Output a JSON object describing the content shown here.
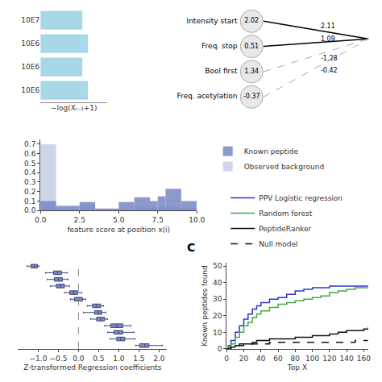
{
  "chart_data": [
    {
      "type": "bar",
      "orientation": "horizontal",
      "categories": [
        "10E7",
        "10E6",
        "10E6",
        "10E6"
      ],
      "values": [
        0.75,
        0.85,
        0.75,
        0.85
      ],
      "color": "#a8d8e8",
      "xlim": [
        0,
        1.2
      ],
      "xlabel": "−log(Xᵢ₋₁+1)",
      "tick_labels": "y",
      "grid": false
    },
    {
      "type": "histogram",
      "bins": [
        0,
        1,
        2.5,
        3.5,
        5,
        6,
        7,
        7.5,
        8,
        9,
        10
      ],
      "series": [
        {
          "name": "Known peptide",
          "color": "#7b88c2",
          "values": [
            0.1,
            0.05,
            0.09,
            0.02,
            0.09,
            0.14,
            0.1,
            0.15,
            0.23,
            0.1
          ]
        },
        {
          "name": "Observed background",
          "color": "#d0d4e8",
          "values": [
            0.7,
            0.02,
            0.06,
            0.02,
            0.02,
            0.04,
            0.03,
            0.04,
            0.04,
            0.03
          ]
        }
      ],
      "xlabel": "feature score at position x(i)",
      "xlim": [
        0,
        10
      ],
      "xticks": [
        {
          "value": 0,
          "label": "0.0"
        },
        2.5,
        {
          "value": 5.0,
          "label": "5.0"
        },
        7.5,
        {
          "value": 10.0,
          "label": "10.0"
        }
      ],
      "ylim": [
        0,
        0.75
      ],
      "yticks": [
        {
          "value": 0.0,
          "label": "0.0"
        },
        0.1,
        0.2,
        0.3,
        0.4,
        0.5,
        0.6,
        0.7
      ],
      "grid": false
    },
    {
      "type": "network",
      "nodes": [
        {
          "label": "Intensity start",
          "value": 2.02
        },
        {
          "label": "Freq. stop",
          "value": 0.51
        },
        {
          "label": "Bool first",
          "value": 1.34
        },
        {
          "label": "Freq. acetylation",
          "value": -0.37
        }
      ],
      "edges": [
        {
          "label": 2.11,
          "line_style": "solid"
        },
        {
          "label": 1.09,
          "line_style": "solid"
        },
        {
          "label": -1.28,
          "line_style": "dashed"
        },
        {
          "label": -0.42,
          "line_style": "dashed"
        }
      ]
    },
    {
      "type": "box",
      "orientation": "horizontal",
      "boxes": [
        {
          "q1": -1.18,
          "med": -1.1,
          "q3": -1.02,
          "whislo": -1.28,
          "whishi": -0.98
        },
        {
          "q1": -0.62,
          "med": -0.52,
          "q3": -0.42,
          "whislo": -0.82,
          "whishi": -0.28
        },
        {
          "q1": -0.6,
          "med": -0.5,
          "q3": -0.4,
          "whislo": -0.78,
          "whishi": -0.26
        },
        {
          "q1": -0.55,
          "med": -0.45,
          "q3": -0.35,
          "whislo": -0.7,
          "whishi": -0.22
        },
        {
          "q1": -0.22,
          "med": -0.12,
          "q3": -0.02,
          "whislo": -0.35,
          "whishi": 0.08
        },
        {
          "q1": -0.1,
          "med": 0.0,
          "q3": 0.1,
          "whislo": -0.2,
          "whishi": 0.18
        },
        {
          "q1": 0.35,
          "med": 0.45,
          "q3": 0.55,
          "whislo": 0.22,
          "whishi": 0.62
        },
        {
          "q1": 0.4,
          "med": 0.5,
          "q3": 0.58,
          "whislo": 0.12,
          "whishi": 0.68
        },
        {
          "q1": 0.45,
          "med": 0.55,
          "q3": 0.65,
          "whislo": 0.3,
          "whishi": 0.72
        },
        {
          "q1": 0.8,
          "med": 0.95,
          "q3": 1.1,
          "whislo": 0.65,
          "whishi": 1.3
        },
        {
          "q1": 0.88,
          "med": 1.0,
          "q3": 1.1,
          "whislo": 0.72,
          "whishi": 1.38
        },
        {
          "q1": 0.95,
          "med": 1.05,
          "q3": 1.15,
          "whislo": 0.78,
          "whishi": 1.4
        },
        {
          "q1": 1.52,
          "med": 1.65,
          "q3": 1.75,
          "whislo": 1.42,
          "whishi": 2.08
        }
      ],
      "color": "#7b88c2",
      "reference_line": {
        "x": 0,
        "line_style": "dashed"
      },
      "xlabel": "Z-transformed Regression coefficients",
      "xlim": [
        -1.5,
        2.2
      ],
      "xticks": [
        {
          "value": -1.0,
          "label": "−1.0"
        },
        {
          "value": -0.5,
          "label": "−0.5"
        },
        {
          "value": 0.0,
          "label": "0.0"
        },
        0.5,
        {
          "value": 1.0,
          "label": "1.0"
        },
        1.5,
        {
          "value": 2.0,
          "label": "2.0"
        }
      ],
      "tick_labels": "x",
      "grid": false
    },
    {
      "type": "line",
      "x": [
        0,
        2,
        5,
        10,
        15,
        20,
        25,
        30,
        35,
        40,
        50,
        60,
        70,
        80,
        90,
        100,
        110,
        120,
        130,
        140,
        150,
        160,
        165
      ],
      "series": [
        {
          "name": "PPV Logistic regression",
          "color": "#3333cc",
          "line_style": "solid",
          "values": [
            0,
            2,
            5,
            10,
            14,
            18,
            21,
            24,
            26,
            28,
            30,
            31,
            33,
            35,
            36,
            37,
            37,
            38,
            38,
            38,
            38,
            38,
            38
          ]
        },
        {
          "name": "Random forest",
          "color": "#44aa44",
          "line_style": "solid",
          "values": [
            0,
            1,
            3,
            7,
            10,
            14,
            16,
            19,
            21,
            23,
            25,
            27,
            28,
            29,
            30,
            31,
            32,
            34,
            35,
            36,
            37,
            37,
            38
          ]
        },
        {
          "name": "PeptideRanker",
          "color": "#111111",
          "line_style": "solid",
          "values": [
            0,
            0,
            1,
            2,
            3,
            3,
            3,
            4,
            5,
            5,
            6,
            6,
            6,
            7,
            7,
            8,
            8,
            9,
            10,
            11,
            11,
            12,
            13
          ]
        },
        {
          "name": "Null model",
          "color": "#111111",
          "line_style": "dashed",
          "values": [
            0,
            0,
            1,
            2,
            2,
            3,
            3,
            3,
            3,
            3,
            4,
            4,
            4,
            4,
            4,
            4,
            4,
            4,
            4,
            4,
            5,
            5,
            5
          ]
        }
      ],
      "xlabel": "Top X",
      "ylabel": "Known peptides found",
      "xlim": [
        0,
        165
      ],
      "xticks": [
        0,
        20,
        40,
        60,
        80,
        100,
        120,
        140,
        160
      ],
      "ylim": [
        0,
        52
      ],
      "yticks": [
        0,
        10,
        20,
        30,
        40,
        50
      ],
      "annotation": "C",
      "grid": false
    }
  ]
}
